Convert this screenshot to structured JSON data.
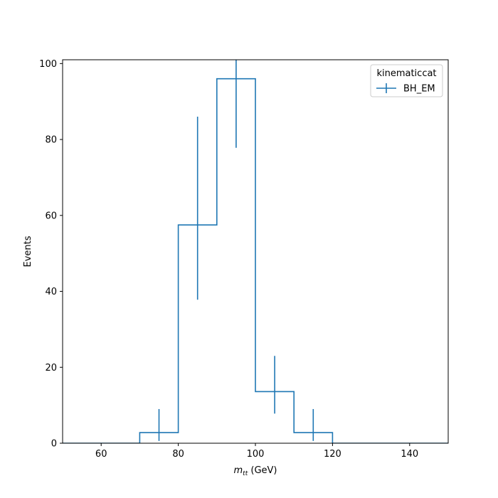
{
  "chart_data": {
    "type": "histogram",
    "xlabel_main": "m",
    "xlabel_sub": "tt",
    "xlabel_unit": " (GeV)",
    "ylabel": "Events",
    "xlim": [
      50,
      150
    ],
    "ylim": [
      0,
      101
    ],
    "xticks": [
      60,
      80,
      100,
      120,
      140
    ],
    "yticks": [
      0,
      20,
      40,
      60,
      80,
      100
    ],
    "grid": false,
    "legend": {
      "title": "kinematiccat",
      "placement": "top-right",
      "entries": [
        "BH_EM"
      ]
    },
    "series": [
      {
        "name": "BH_EM",
        "color": "#1f77b4",
        "bin_edges": [
          50,
          60,
          70,
          80,
          90,
          100,
          110,
          120,
          130,
          140,
          150
        ],
        "values": [
          0,
          0,
          2.8,
          57.5,
          96.0,
          13.6,
          2.8,
          0,
          0,
          0
        ],
        "error_low": [
          0,
          0,
          0.6,
          37.8,
          77.8,
          7.8,
          0.6,
          0,
          0,
          0
        ],
        "error_high": [
          0,
          0,
          9.0,
          86.0,
          102,
          23.0,
          9.0,
          0,
          0,
          0
        ]
      }
    ]
  }
}
